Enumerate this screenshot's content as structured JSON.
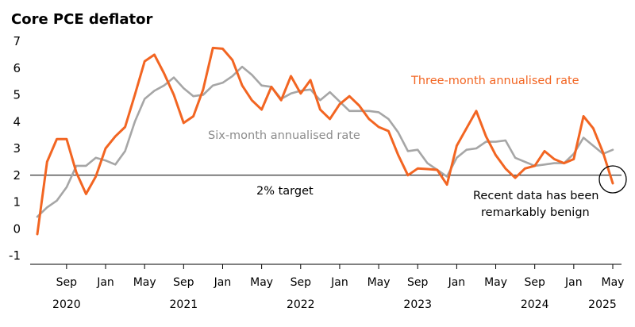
{
  "chart_data": {
    "type": "line",
    "title": "Core PCE deflator",
    "xlabel": "",
    "ylabel": "",
    "ylim": [
      -1,
      7
    ],
    "yticks": [
      "7",
      "6",
      "5",
      "4",
      "3",
      "2",
      "1",
      "0",
      "-1"
    ],
    "xtick_labels": [
      "Sep",
      "Jan",
      "May",
      "Sep",
      "Jan",
      "May",
      "Sep",
      "Jan",
      "May",
      "Sep",
      "Jan",
      "May",
      "Sep",
      "Jan",
      "May"
    ],
    "year_labels": [
      "2020",
      "2021",
      "2022",
      "2023",
      "2024",
      "2025"
    ],
    "x_start": "Jun 2020",
    "x_end": "May 2025",
    "series": [
      {
        "name": "Three-month annualised rate",
        "color": "#f26522",
        "values": [
          -0.2,
          2.5,
          3.35,
          3.35,
          2.1,
          1.3,
          1.95,
          3.0,
          3.45,
          3.8,
          5.0,
          6.25,
          6.5,
          5.8,
          5.0,
          3.95,
          4.2,
          5.2,
          6.75,
          6.72,
          6.3,
          5.35,
          4.8,
          4.45,
          5.3,
          4.8,
          5.7,
          5.05,
          5.55,
          4.45,
          4.1,
          4.65,
          4.95,
          4.6,
          4.1,
          3.8,
          3.65,
          2.75,
          2.0,
          2.25,
          2.23,
          2.2,
          1.65,
          3.1,
          3.75,
          4.4,
          3.45,
          2.75,
          2.25,
          1.9,
          2.25,
          2.35,
          2.9,
          2.6,
          2.45,
          2.6,
          4.2,
          3.75,
          2.85,
          1.7
        ]
      },
      {
        "name": "Six-month annualised rate",
        "color": "#a6a6a6",
        "values": [
          0.45,
          0.8,
          1.05,
          1.55,
          2.35,
          2.35,
          2.65,
          2.55,
          2.4,
          2.9,
          4.0,
          4.85,
          5.15,
          5.35,
          5.65,
          5.25,
          4.95,
          5.0,
          5.35,
          5.45,
          5.7,
          6.05,
          5.75,
          5.35,
          5.3,
          4.85,
          5.05,
          5.15,
          5.2,
          4.8,
          5.1,
          4.75,
          4.4,
          4.4,
          4.4,
          4.35,
          4.1,
          3.6,
          2.9,
          2.95,
          2.45,
          2.2,
          1.95,
          2.65,
          2.95,
          3.0,
          3.25,
          3.25,
          3.3,
          2.65,
          2.5,
          2.35,
          2.4,
          2.45,
          2.45,
          2.8,
          3.4,
          3.1,
          2.8,
          2.95
        ]
      }
    ],
    "reference_line": {
      "value": 2,
      "label": "2% target",
      "color": "#000000"
    },
    "annotations": {
      "three_month": "Three-month annualised rate",
      "six_month": "Six-month annualised rate",
      "recent_line1": "Recent data has been",
      "recent_line2": "remarkably benign"
    }
  }
}
